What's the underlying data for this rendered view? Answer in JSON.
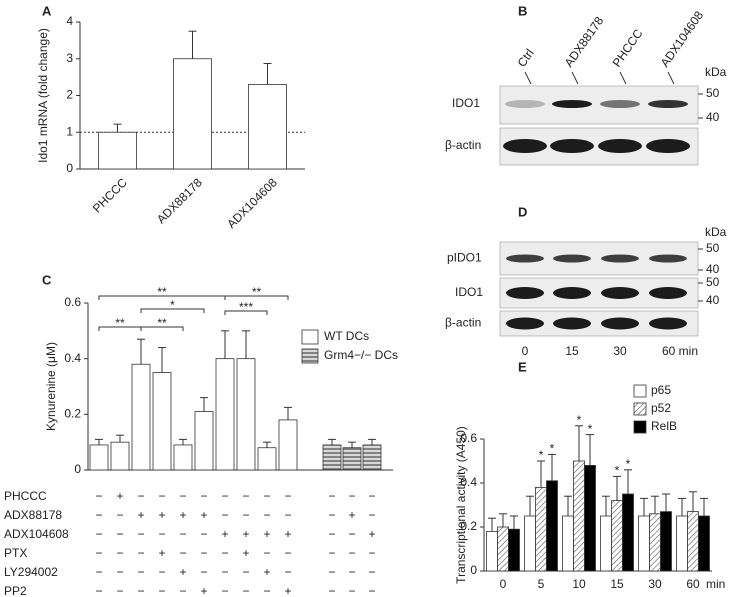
{
  "panel_labels": [
    "A",
    "B",
    "C",
    "D",
    "E"
  ],
  "chart_data": [
    {
      "type": "bar",
      "ylabel": "Ido1 mRNA (fold change)",
      "categories": [
        "PHCCC",
        "ADX88178",
        "ADX104608"
      ],
      "values": [
        1.0,
        3.0,
        2.3
      ],
      "errors": [
        0.22,
        0.75,
        0.57
      ],
      "color": "#ffffff",
      "ylim": [
        0,
        4
      ],
      "yticks": [
        0,
        1,
        2,
        3,
        4
      ],
      "reference_line": 1
    },
    {
      "type": "bar",
      "ylabel": "Kynurenine (μM)",
      "ylim": [
        0,
        0.6
      ],
      "yticks": [
        0,
        0.2,
        0.4,
        0.6
      ],
      "series": [
        {
          "name": "WT DCs",
          "color": "#ffffff",
          "values": [
            0.09,
            0.1,
            0.38,
            0.35,
            0.09,
            0.21,
            0.4,
            0.4,
            0.08,
            0.18
          ],
          "errors": [
            0.02,
            0.025,
            0.09,
            0.09,
            0.02,
            0.05,
            0.1,
            0.1,
            0.02,
            0.045
          ]
        },
        {
          "name": "Grm4−/− DCs",
          "color": "#8c8c8c",
          "hatch": "horizontal",
          "values": [
            0.09,
            0.08,
            0.09
          ],
          "errors": [
            0.02,
            0.02,
            0.02
          ]
        }
      ],
      "annotations": [
        {
          "text": "**",
          "from": 0,
          "to": 6
        },
        {
          "text": "*",
          "from": 2,
          "to": 5
        },
        {
          "text": "**",
          "from": 0,
          "to": 2
        },
        {
          "text": "**",
          "from": 2,
          "to": 4
        },
        {
          "text": "**",
          "from": 6,
          "to": 9
        },
        {
          "text": "***",
          "from": 6,
          "to": 8
        }
      ],
      "treatments": [
        {
          "name": "PHCCC",
          "signs": [
            "−",
            "+",
            "−",
            "−",
            "−",
            "−",
            "−",
            "−",
            "−",
            "−",
            "−",
            "−",
            "−"
          ]
        },
        {
          "name": "ADX88178",
          "signs": [
            "−",
            "−",
            "+",
            "+",
            "+",
            "+",
            "−",
            "−",
            "−",
            "−",
            "−",
            "+",
            "−"
          ]
        },
        {
          "name": "ADX104608",
          "signs": [
            "−",
            "−",
            "−",
            "−",
            "−",
            "−",
            "+",
            "+",
            "+",
            "+",
            "−",
            "−",
            "+"
          ]
        },
        {
          "name": "PTX",
          "signs": [
            "−",
            "−",
            "−",
            "+",
            "−",
            "−",
            "−",
            "+",
            "−",
            "−",
            "−",
            "−",
            "−"
          ]
        },
        {
          "name": "LY294002",
          "signs": [
            "−",
            "−",
            "−",
            "−",
            "+",
            "−",
            "−",
            "−",
            "+",
            "−",
            "−",
            "−",
            "−"
          ]
        },
        {
          "name": "PP2",
          "signs": [
            "−",
            "−",
            "−",
            "−",
            "−",
            "+",
            "−",
            "−",
            "−",
            "+",
            "−",
            "−",
            "−"
          ]
        }
      ]
    },
    {
      "type": "grouped_bar",
      "ylabel": "Transcriptional activity (A450)",
      "xlabel": "min",
      "categories": [
        "0",
        "5",
        "10",
        "15",
        "30",
        "60"
      ],
      "ylim": [
        0,
        0.6
      ],
      "yticks": [
        0,
        0.2,
        0.4,
        0.6
      ],
      "series": [
        {
          "name": "p65",
          "color": "#ffffff",
          "values": [
            0.18,
            0.25,
            0.25,
            0.25,
            0.25,
            0.25
          ],
          "errors": [
            0.06,
            0.09,
            0.09,
            0.09,
            0.08,
            0.08
          ]
        },
        {
          "name": "p52",
          "color": "#ffffff",
          "hatch": "diagonal",
          "values": [
            0.2,
            0.38,
            0.5,
            0.32,
            0.26,
            0.27
          ],
          "errors": [
            0.06,
            0.12,
            0.16,
            0.11,
            0.08,
            0.09
          ]
        },
        {
          "name": "RelB",
          "color": "#000000",
          "values": [
            0.19,
            0.41,
            0.48,
            0.35,
            0.27,
            0.25
          ],
          "errors": [
            0.06,
            0.12,
            0.14,
            0.11,
            0.08,
            0.08
          ]
        }
      ],
      "annotations": [
        {
          "text": "*",
          "series": 1,
          "category": 1
        },
        {
          "text": "*",
          "series": 2,
          "category": 1
        },
        {
          "text": "*",
          "series": 1,
          "category": 2
        },
        {
          "text": "*",
          "series": 2,
          "category": 2
        },
        {
          "text": "*",
          "series": 1,
          "category": 3
        },
        {
          "text": "*",
          "series": 2,
          "category": 3
        }
      ]
    }
  ],
  "blots": [
    {
      "lanes": [
        "Ctrl",
        "ADX88178",
        "PHCCC",
        "ADX104608"
      ],
      "rows": [
        "IDO1",
        "β-actin"
      ],
      "unit": "kDa",
      "markers": [
        [
          "50",
          "40"
        ]
      ]
    },
    {
      "lanes": [
        "0",
        "15",
        "30",
        "60 min"
      ],
      "rows": [
        "pIDO1",
        "IDO1",
        "β-actin"
      ],
      "unit": "kDa",
      "markers": [
        [
          "50",
          "40"
        ],
        [
          "50",
          "40"
        ]
      ]
    }
  ]
}
